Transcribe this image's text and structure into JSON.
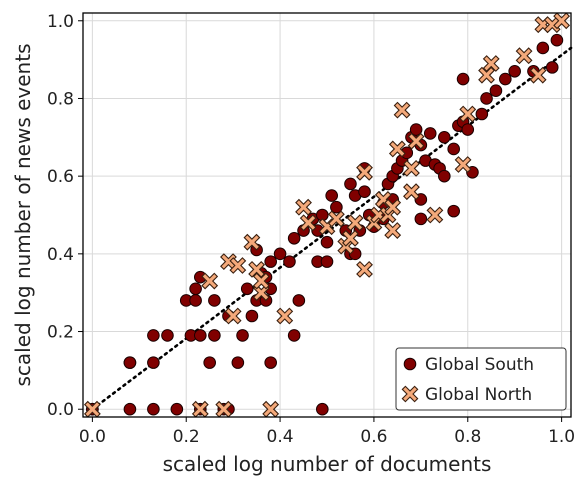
{
  "chart_data": {
    "type": "scatter",
    "xlabel": "scaled log number of documents",
    "ylabel": "scaled log number of news events",
    "xlim": [
      -0.02,
      1.02
    ],
    "ylim": [
      -0.02,
      1.02
    ],
    "x_ticks": [
      "0.0",
      "0.2",
      "0.4",
      "0.6",
      "0.8",
      "1.0"
    ],
    "y_ticks": [
      "0.0",
      "0.2",
      "0.4",
      "0.6",
      "0.8",
      "1.0"
    ],
    "grid": true,
    "legend_position": "bottom-right",
    "reference_line": {
      "style": "dotted",
      "color": "#000000",
      "from": [
        0,
        0
      ],
      "to": [
        1.02,
        0.93
      ]
    },
    "series": [
      {
        "name": "Global South",
        "marker": "circle",
        "color": "#800000",
        "points": [
          [
            0.0,
            0.0
          ],
          [
            0.0,
            0.0
          ],
          [
            0.08,
            0.0
          ],
          [
            0.13,
            0.0
          ],
          [
            0.18,
            0.0
          ],
          [
            0.23,
            0.0
          ],
          [
            0.28,
            0.0
          ],
          [
            0.29,
            0.0
          ],
          [
            0.49,
            0.0
          ],
          [
            0.08,
            0.12
          ],
          [
            0.08,
            0.12
          ],
          [
            0.13,
            0.12
          ],
          [
            0.25,
            0.12
          ],
          [
            0.31,
            0.12
          ],
          [
            0.38,
            0.12
          ],
          [
            0.13,
            0.19
          ],
          [
            0.16,
            0.19
          ],
          [
            0.21,
            0.19
          ],
          [
            0.23,
            0.19
          ],
          [
            0.26,
            0.19
          ],
          [
            0.32,
            0.19
          ],
          [
            0.43,
            0.19
          ],
          [
            0.29,
            0.24
          ],
          [
            0.34,
            0.24
          ],
          [
            0.2,
            0.28
          ],
          [
            0.22,
            0.28
          ],
          [
            0.26,
            0.28
          ],
          [
            0.35,
            0.28
          ],
          [
            0.37,
            0.28
          ],
          [
            0.44,
            0.28
          ],
          [
            0.22,
            0.31
          ],
          [
            0.23,
            0.34
          ],
          [
            0.33,
            0.31
          ],
          [
            0.38,
            0.31
          ],
          [
            0.36,
            0.35
          ],
          [
            0.37,
            0.34
          ],
          [
            0.38,
            0.38
          ],
          [
            0.42,
            0.38
          ],
          [
            0.48,
            0.38
          ],
          [
            0.5,
            0.38
          ],
          [
            0.35,
            0.41
          ],
          [
            0.4,
            0.4
          ],
          [
            0.43,
            0.44
          ],
          [
            0.45,
            0.46
          ],
          [
            0.47,
            0.49
          ],
          [
            0.48,
            0.46
          ],
          [
            0.5,
            0.43
          ],
          [
            0.49,
            0.5
          ],
          [
            0.51,
            0.55
          ],
          [
            0.52,
            0.52
          ],
          [
            0.54,
            0.46
          ],
          [
            0.55,
            0.4
          ],
          [
            0.56,
            0.4
          ],
          [
            0.57,
            0.46
          ],
          [
            0.55,
            0.58
          ],
          [
            0.56,
            0.55
          ],
          [
            0.58,
            0.56
          ],
          [
            0.58,
            0.62
          ],
          [
            0.59,
            0.5
          ],
          [
            0.6,
            0.47
          ],
          [
            0.62,
            0.49
          ],
          [
            0.62,
            0.53
          ],
          [
            0.63,
            0.58
          ],
          [
            0.64,
            0.54
          ],
          [
            0.64,
            0.6
          ],
          [
            0.65,
            0.62
          ],
          [
            0.66,
            0.64
          ],
          [
            0.67,
            0.66
          ],
          [
            0.68,
            0.7
          ],
          [
            0.69,
            0.72
          ],
          [
            0.7,
            0.68
          ],
          [
            0.71,
            0.64
          ],
          [
            0.7,
            0.54
          ],
          [
            0.7,
            0.49
          ],
          [
            0.72,
            0.71
          ],
          [
            0.73,
            0.63
          ],
          [
            0.74,
            0.62
          ],
          [
            0.75,
            0.6
          ],
          [
            0.75,
            0.7
          ],
          [
            0.77,
            0.67
          ],
          [
            0.77,
            0.51
          ],
          [
            0.78,
            0.73
          ],
          [
            0.79,
            0.74
          ],
          [
            0.79,
            0.85
          ],
          [
            0.8,
            0.72
          ],
          [
            0.81,
            0.61
          ],
          [
            0.83,
            0.76
          ],
          [
            0.84,
            0.8
          ],
          [
            0.86,
            0.82
          ],
          [
            0.88,
            0.85
          ],
          [
            0.9,
            0.87
          ],
          [
            0.94,
            0.87
          ],
          [
            0.96,
            0.93
          ],
          [
            0.98,
            0.88
          ],
          [
            0.99,
            0.95
          ]
        ]
      },
      {
        "name": "Global North",
        "marker": "x-square",
        "color": "#f4a97a",
        "points": [
          [
            0.0,
            0.0
          ],
          [
            0.23,
            0.0
          ],
          [
            0.28,
            0.0
          ],
          [
            0.38,
            0.0
          ],
          [
            0.25,
            0.33
          ],
          [
            0.29,
            0.38
          ],
          [
            0.3,
            0.24
          ],
          [
            0.31,
            0.37
          ],
          [
            0.34,
            0.43
          ],
          [
            0.35,
            0.36
          ],
          [
            0.36,
            0.3
          ],
          [
            0.36,
            0.33
          ],
          [
            0.41,
            0.24
          ],
          [
            0.45,
            0.52
          ],
          [
            0.46,
            0.48
          ],
          [
            0.5,
            0.47
          ],
          [
            0.52,
            0.49
          ],
          [
            0.54,
            0.42
          ],
          [
            0.55,
            0.44
          ],
          [
            0.56,
            0.48
          ],
          [
            0.58,
            0.61
          ],
          [
            0.58,
            0.36
          ],
          [
            0.6,
            0.48
          ],
          [
            0.61,
            0.5
          ],
          [
            0.62,
            0.54
          ],
          [
            0.63,
            0.5
          ],
          [
            0.64,
            0.52
          ],
          [
            0.64,
            0.46
          ],
          [
            0.65,
            0.67
          ],
          [
            0.66,
            0.77
          ],
          [
            0.68,
            0.62
          ],
          [
            0.68,
            0.56
          ],
          [
            0.69,
            0.69
          ],
          [
            0.73,
            0.5
          ],
          [
            0.79,
            0.63
          ],
          [
            0.8,
            0.76
          ],
          [
            0.84,
            0.86
          ],
          [
            0.85,
            0.89
          ],
          [
            0.92,
            0.91
          ],
          [
            0.95,
            0.86
          ],
          [
            0.96,
            0.99
          ],
          [
            0.98,
            0.99
          ],
          [
            1.0,
            1.0
          ]
        ]
      }
    ]
  }
}
